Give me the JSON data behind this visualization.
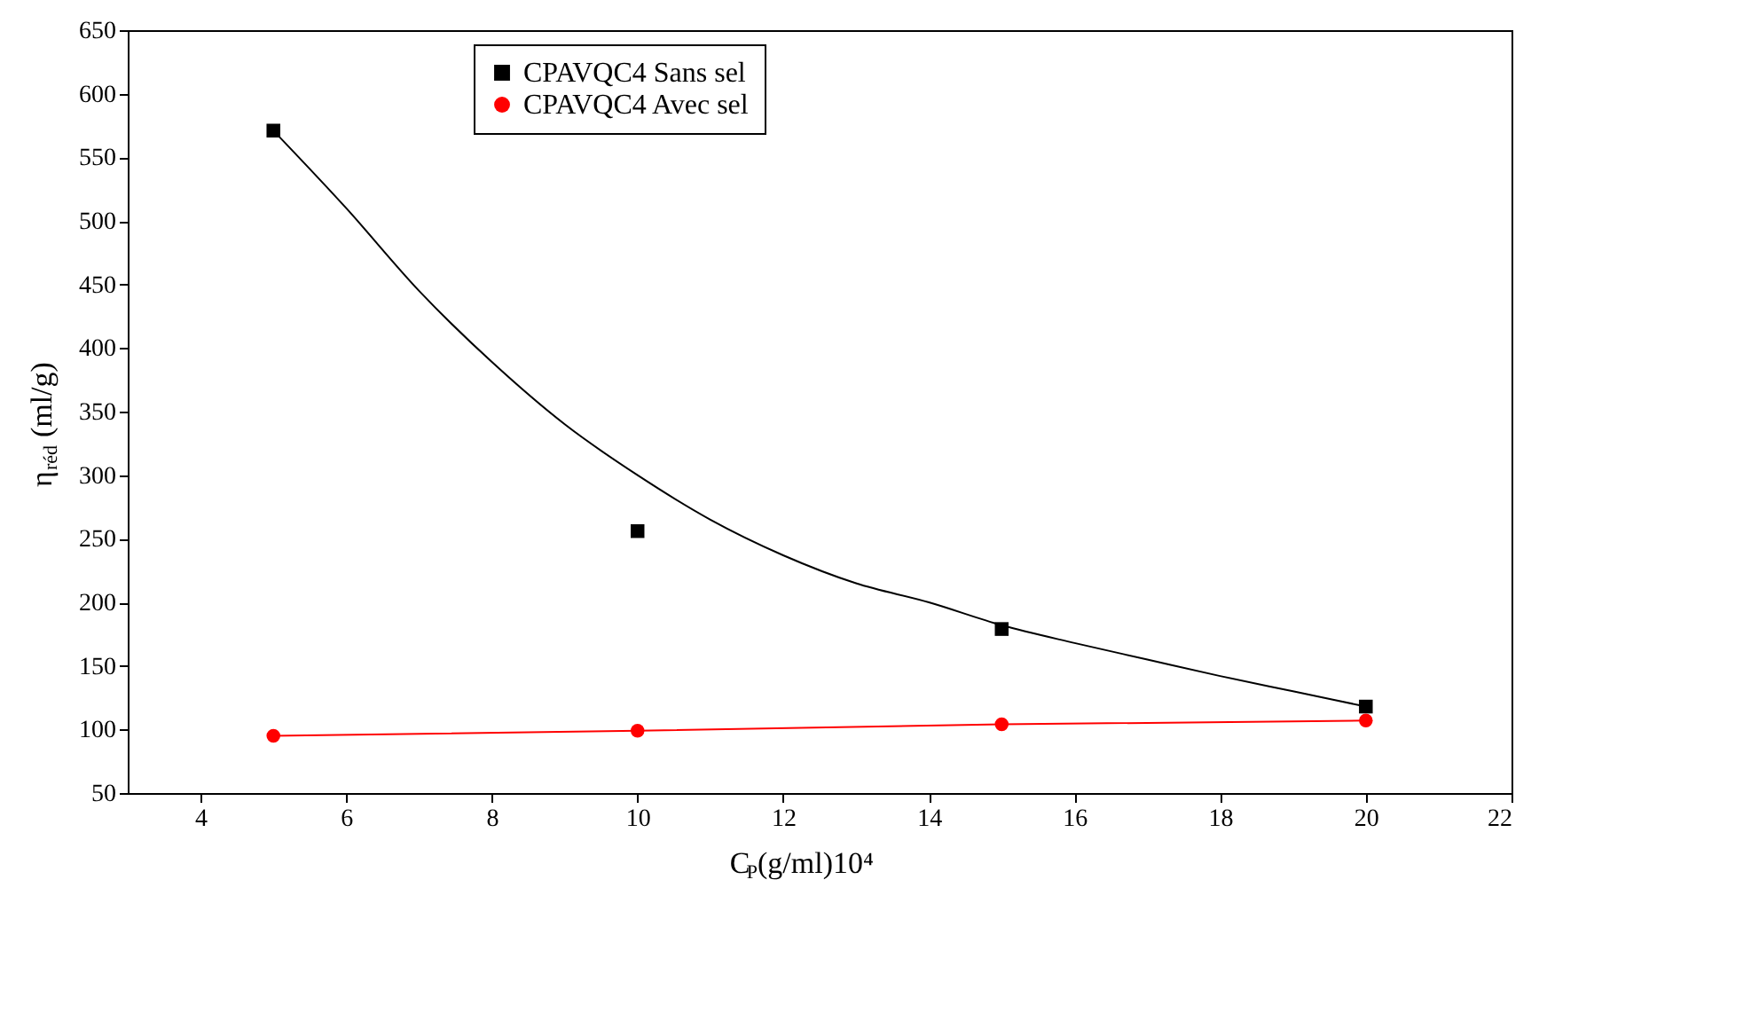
{
  "chart_data": {
    "type": "scatter",
    "xlabel": "C$_{P}$(g/ml)10⁴",
    "ylabel": "η$_{réd}$(ml/g)",
    "x": [
      5,
      10,
      15,
      20
    ],
    "series": [
      {
        "name": "CPAVQC4 Sans sel",
        "color": "#000000",
        "marker": "square",
        "values": [
          571,
          256,
          179,
          118
        ]
      },
      {
        "name": "CPAVQC4 Avec sel",
        "color": "#ff0000",
        "type": "line",
        "marker": "circle",
        "values": [
          95,
          99,
          104,
          107
        ]
      },
      {
        "color": "#000000",
        "type": "line",
        "marker": "none",
        "x": [
          5,
          6,
          7,
          8,
          9,
          10,
          11,
          12,
          13,
          14,
          15,
          16,
          17,
          18,
          19,
          20
        ],
        "values": [
          571,
          510,
          445,
          389,
          340,
          300,
          265,
          237,
          215,
          200,
          182,
          168,
          155,
          142,
          130,
          118
        ]
      }
    ],
    "xlim": [
      3,
      22
    ],
    "xticks": [
      4,
      6,
      8,
      10,
      12,
      14,
      16,
      18,
      20,
      22
    ],
    "ylim": [
      50,
      650
    ],
    "yticks": [
      50,
      100,
      150,
      200,
      250,
      300,
      350,
      400,
      450,
      500,
      550,
      600,
      650
    ],
    "grid": false,
    "legend": "top"
  }
}
